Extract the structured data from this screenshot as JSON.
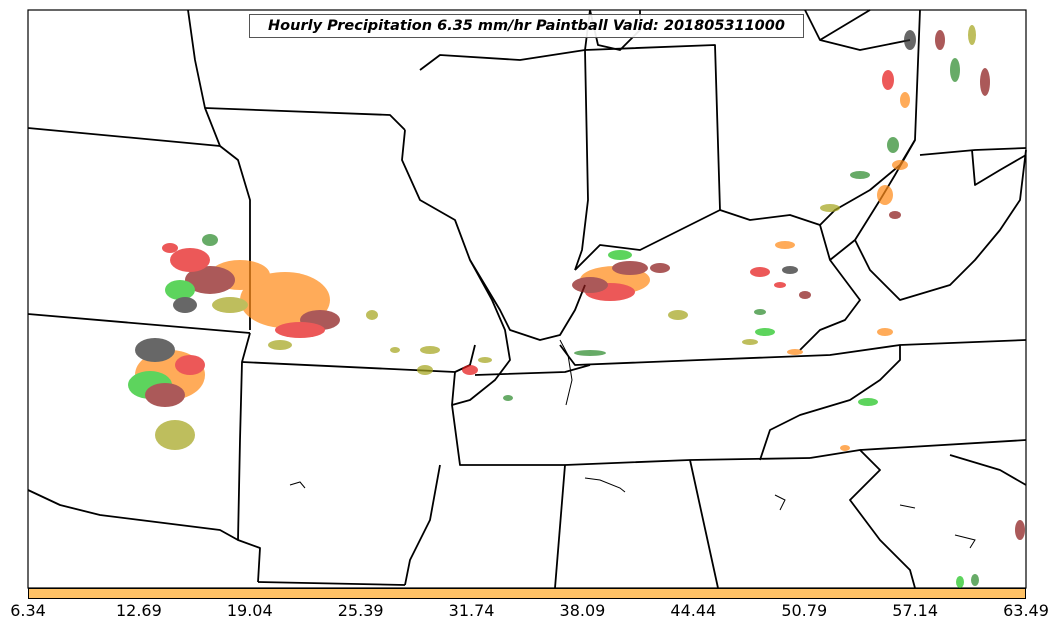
{
  "map": {
    "title": "Hourly Precipitation 6.35 mm/hr Paintball Valid: 201805311000",
    "colorbar": {
      "color": "#ffc266",
      "tick_labels": [
        "6.34",
        "12.69",
        "19.04",
        "25.39",
        "31.74",
        "38.09",
        "44.44",
        "50.79",
        "57.14",
        "63.49"
      ]
    },
    "member_colors": [
      "#2e2e2e",
      "#8b1a1a",
      "#e61919",
      "#ff8c1a",
      "#1fc41f",
      "#2e8b2e",
      "#a6a61f"
    ]
  }
}
